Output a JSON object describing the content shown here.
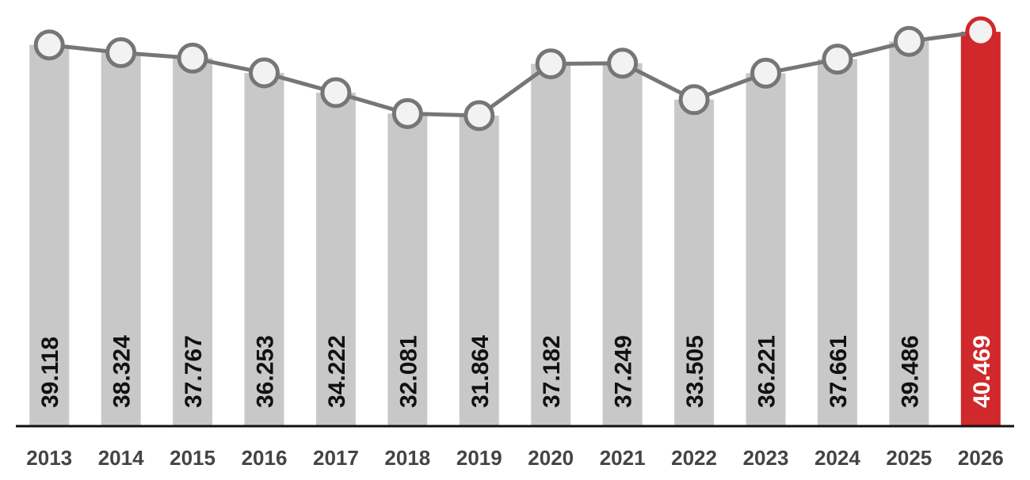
{
  "chart_data": {
    "type": "bar_line",
    "categories": [
      "2013",
      "2014",
      "2015",
      "2016",
      "2017",
      "2018",
      "2019",
      "2020",
      "2021",
      "2022",
      "2023",
      "2024",
      "2025",
      "2026"
    ],
    "values": [
      39.118,
      38.324,
      37.767,
      36.253,
      34.222,
      32.081,
      31.864,
      37.182,
      37.249,
      33.505,
      36.221,
      37.661,
      39.486,
      40.469
    ],
    "colors": [
      "#c8c8c8",
      "#c8c8c8",
      "#c8c8c8",
      "#c8c8c8",
      "#c8c8c8",
      "#c8c8c8",
      "#c8c8c8",
      "#c8c8c8",
      "#c8c8c8",
      "#c8c8c8",
      "#c8c8c8",
      "#c8c8c8",
      "#c8c8c8",
      "#d0282b"
    ],
    "label_colors": [
      "#111111",
      "#111111",
      "#111111",
      "#111111",
      "#111111",
      "#111111",
      "#111111",
      "#111111",
      "#111111",
      "#111111",
      "#111111",
      "#111111",
      "#111111",
      "#ffffff"
    ],
    "line_color": "#767676",
    "ylim": [
      0,
      43
    ]
  }
}
